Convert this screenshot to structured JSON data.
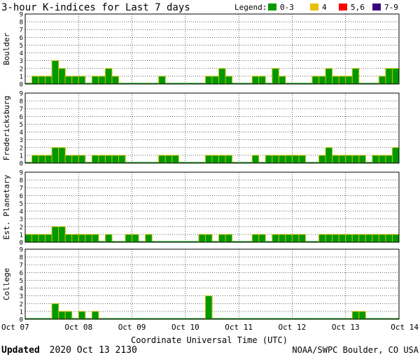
{
  "chart_data": {
    "type": "bar",
    "title": "3-hour K-indices for Last 7 days",
    "legend": {
      "label": "Legend:",
      "placement": "top-right",
      "entries": [
        {
          "label": "0-3",
          "color": "#009900"
        },
        {
          "label": "4",
          "color": "#e8c000"
        },
        {
          "label": "5,6",
          "color": "#ff0000"
        },
        {
          "label": "7-9",
          "color": "#3a0080"
        }
      ]
    },
    "xlabel": "Coordinate Universal Time (UTC)",
    "x_ticks": [
      "Oct 07",
      "Oct 08",
      "Oct 09",
      "Oct 10",
      "Oct 11",
      "Oct 12",
      "Oct 13",
      "Oct 14"
    ],
    "ylim": [
      0,
      9
    ],
    "y_ticks": [
      "0",
      "1",
      "2",
      "3",
      "4",
      "5",
      "6",
      "7",
      "8",
      "9"
    ],
    "grid": true,
    "series": [
      {
        "name": "Boulder",
        "values": [
          0,
          1,
          1,
          1,
          3,
          2,
          1,
          1,
          1,
          0,
          1,
          1,
          2,
          1,
          0,
          0,
          0,
          0,
          0,
          0,
          1,
          0,
          0,
          0,
          0,
          0,
          0,
          1,
          1,
          2,
          1,
          0,
          0,
          0,
          1,
          1,
          0,
          2,
          1,
          0,
          0,
          0,
          0,
          1,
          1,
          2,
          1,
          1,
          1,
          2,
          0,
          0,
          0,
          1,
          2,
          2
        ]
      },
      {
        "name": "Fredericksburg",
        "values": [
          0,
          1,
          1,
          1,
          2,
          2,
          1,
          1,
          1,
          0,
          1,
          1,
          1,
          1,
          1,
          0,
          0,
          0,
          0,
          0,
          1,
          1,
          1,
          0,
          0,
          0,
          0,
          1,
          1,
          1,
          1,
          0,
          0,
          0,
          1,
          0,
          1,
          1,
          1,
          1,
          1,
          1,
          0,
          0,
          1,
          2,
          1,
          1,
          1,
          1,
          1,
          0,
          1,
          1,
          1,
          2
        ]
      },
      {
        "name": "Est. Planetary",
        "values": [
          1,
          1,
          1,
          1,
          2,
          2,
          1,
          1,
          1,
          1,
          1,
          0,
          1,
          0,
          0,
          1,
          1,
          0,
          1,
          0,
          0,
          0,
          0,
          0,
          0,
          0,
          1,
          1,
          0,
          1,
          1,
          0,
          0,
          0,
          1,
          1,
          0,
          1,
          1,
          1,
          1,
          1,
          0,
          0,
          1,
          1,
          1,
          1,
          1,
          1,
          1,
          1,
          1,
          1,
          1,
          1
        ]
      },
      {
        "name": "College",
        "values": [
          0,
          0,
          0,
          0,
          2,
          1,
          1,
          0,
          1,
          0,
          1,
          0,
          0,
          0,
          0,
          0,
          0,
          0,
          0,
          0,
          0,
          0,
          0,
          0,
          0,
          0,
          0,
          3,
          0,
          0,
          0,
          0,
          0,
          0,
          0,
          0,
          0,
          0,
          0,
          0,
          0,
          0,
          0,
          0,
          0,
          0,
          0,
          0,
          0,
          1,
          1,
          0,
          0,
          0,
          0,
          0
        ]
      }
    ]
  },
  "footer": {
    "updated_label": "Updated",
    "updated_value": "2020 Oct 13 2130",
    "source": "NOAA/SWPC Boulder, CO USA"
  }
}
